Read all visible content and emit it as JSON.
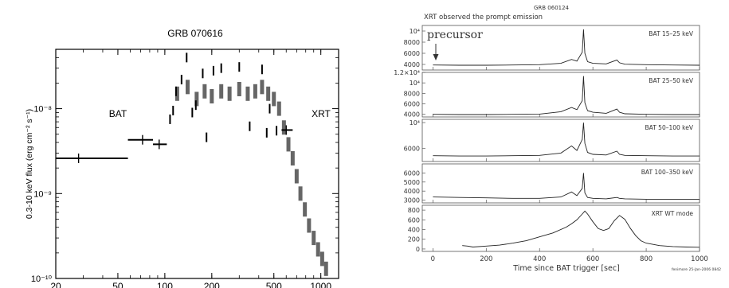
{
  "chart_data": [
    {
      "type": "scatter",
      "title": "GRB 070616",
      "xlabel": "",
      "ylabel": "0.3-10 keV flux (erg cm⁻² s⁻¹)",
      "x_scale": "log",
      "y_scale": "log",
      "xlim": [
        20,
        1300
      ],
      "ylim": [
        1e-10,
        5e-08
      ],
      "x_ticks": [
        20,
        50,
        100,
        200,
        500,
        1000
      ],
      "x_tick_labels": [
        "20",
        "50",
        "100",
        "200",
        "500",
        "1000"
      ],
      "y_ticks": [
        1e-10,
        1e-09,
        1e-08
      ],
      "y_tick_labels": [
        "10⁻¹⁰",
        "10⁻⁹",
        "10⁻⁸"
      ],
      "annotations": [
        "BAT",
        "XRT"
      ],
      "series": [
        {
          "name": "",
          "points": [
            {
              "x": 28,
              "y": 2.6e-09,
              "xerr": [
                20,
                58
              ]
            },
            {
              "x": 72,
              "y": 4.3e-09,
              "xerr": [
                58,
                84
              ]
            },
            {
              "x": 92,
              "y": 3.8e-09,
              "xerr": [
                84,
                103
              ]
            },
            {
              "x": 108,
              "y": 7.5e-09
            },
            {
              "x": 113,
              "y": 9.5e-09
            },
            {
              "x": 118,
              "y": 1.6e-08
            },
            {
              "x": 128,
              "y": 2.2e-08
            },
            {
              "x": 138,
              "y": 4e-08
            },
            {
              "x": 150,
              "y": 9e-09
            },
            {
              "x": 158,
              "y": 1.1e-08
            },
            {
              "x": 175,
              "y": 2.6e-08
            },
            {
              "x": 185,
              "y": 4.6e-09
            },
            {
              "x": 205,
              "y": 2.8e-08
            },
            {
              "x": 230,
              "y": 3e-08
            },
            {
              "x": 300,
              "y": 3.1e-08
            },
            {
              "x": 350,
              "y": 6.2e-09
            },
            {
              "x": 420,
              "y": 2.9e-08
            },
            {
              "x": 450,
              "y": 5.2e-09
            },
            {
              "x": 470,
              "y": 1e-08
            },
            {
              "x": 520,
              "y": 5.5e-09
            },
            {
              "x": 600,
              "y": 5.6e-09,
              "xerr": [
                560,
                660
              ]
            }
          ]
        },
        {
          "name": "",
          "points": [
            {
              "x": 120,
              "y": 1.5e-08
            },
            {
              "x": 140,
              "y": 1.8e-08
            },
            {
              "x": 160,
              "y": 1.3e-08
            },
            {
              "x": 180,
              "y": 1.6e-08
            },
            {
              "x": 200,
              "y": 1.4e-08
            },
            {
              "x": 230,
              "y": 1.6e-08
            },
            {
              "x": 260,
              "y": 1.5e-08
            },
            {
              "x": 300,
              "y": 1.7e-08
            },
            {
              "x": 340,
              "y": 1.5e-08
            },
            {
              "x": 380,
              "y": 1.6e-08
            },
            {
              "x": 420,
              "y": 1.8e-08
            },
            {
              "x": 460,
              "y": 1.5e-08
            },
            {
              "x": 500,
              "y": 1.3e-08
            },
            {
              "x": 540,
              "y": 1e-08
            },
            {
              "x": 580,
              "y": 6e-09
            },
            {
              "x": 620,
              "y": 3.8e-09
            },
            {
              "x": 660,
              "y": 2.6e-09
            },
            {
              "x": 700,
              "y": 1.6e-09
            },
            {
              "x": 740,
              "y": 1e-09
            },
            {
              "x": 790,
              "y": 6.5e-10
            },
            {
              "x": 840,
              "y": 4.2e-10
            },
            {
              "x": 900,
              "y": 3e-10
            },
            {
              "x": 960,
              "y": 2.2e-10
            },
            {
              "x": 1020,
              "y": 1.7e-10
            },
            {
              "x": 1080,
              "y": 1.3e-10
            }
          ]
        }
      ]
    },
    {
      "type": "line",
      "title": "GRB 060124",
      "subtitle": "XRT observed the prompt emission",
      "annotation": "precursor",
      "xlabel": "Time since BAT trigger [sec]",
      "xlim": [
        -40,
        1000
      ],
      "x_ticks": [
        0,
        200,
        400,
        600,
        800,
        1000
      ],
      "x_tick_labels": [
        "0",
        "200",
        "400",
        "600",
        "800",
        "1000"
      ],
      "footer": "fenimore 25-Jan-2006 0842",
      "panels": [
        {
          "label": "BAT 15–25 keV",
          "ylim": [
            3000,
            11000
          ],
          "y_ticks": [
            4000,
            6000,
            8000,
            10000
          ],
          "y_tick_labels": [
            "4000",
            "6000",
            "8000",
            "10⁴"
          ],
          "x": [
            0,
            100,
            200,
            300,
            400,
            480,
            520,
            540,
            560,
            565,
            570,
            580,
            600,
            650,
            690,
            700,
            720,
            800,
            900,
            1000
          ],
          "y": [
            3900,
            3850,
            3850,
            3900,
            3950,
            4200,
            4900,
            4600,
            6200,
            10300,
            6000,
            4500,
            4200,
            4100,
            4800,
            4300,
            4050,
            3950,
            3900,
            3850
          ]
        },
        {
          "label": "BAT 25–50 keV",
          "ylim": [
            3500,
            12000
          ],
          "y_ticks": [
            4000,
            6000,
            8000,
            10000,
            12000
          ],
          "y_tick_labels": [
            "4000",
            "6000",
            "8000",
            "10⁴",
            "1.2×10⁴"
          ],
          "x": [
            0,
            100,
            200,
            300,
            400,
            480,
            520,
            540,
            560,
            565,
            570,
            580,
            600,
            650,
            690,
            700,
            720,
            800,
            900,
            1000
          ],
          "y": [
            4000,
            3950,
            3950,
            4000,
            4050,
            4500,
            5300,
            4900,
            6600,
            11300,
            6200,
            4700,
            4400,
            4200,
            5000,
            4400,
            4100,
            4000,
            3950,
            3950
          ]
        },
        {
          "label": "BAT 50–100 keV",
          "ylim": [
            4000,
            10500
          ],
          "y_ticks": [
            6000,
            10000
          ],
          "y_tick_labels": [
            "6000",
            "10⁴"
          ],
          "x": [
            0,
            100,
            200,
            300,
            400,
            480,
            520,
            540,
            560,
            565,
            570,
            580,
            600,
            650,
            690,
            700,
            720,
            800,
            900,
            1000
          ],
          "y": [
            4900,
            4850,
            4850,
            4900,
            4950,
            5300,
            6400,
            5700,
            7400,
            10000,
            6800,
            5400,
            5100,
            5000,
            5600,
            5100,
            4950,
            4900,
            4850,
            4850
          ]
        },
        {
          "label": "BAT 100–350 keV",
          "ylim": [
            2700,
            7000
          ],
          "y_ticks": [
            3000,
            4000,
            5000,
            6000
          ],
          "y_tick_labels": [
            "3000",
            "4000",
            "5000",
            "6000"
          ],
          "x": [
            0,
            100,
            200,
            300,
            400,
            480,
            520,
            540,
            560,
            565,
            570,
            580,
            600,
            650,
            690,
            700,
            720,
            800,
            900,
            1000
          ],
          "y": [
            3350,
            3300,
            3250,
            3200,
            3200,
            3350,
            3900,
            3500,
            4300,
            6000,
            3800,
            3300,
            3200,
            3150,
            3300,
            3200,
            3150,
            3100,
            3100,
            3100
          ]
        },
        {
          "label": "XRT WT mode",
          "ylim": [
            -50,
            900
          ],
          "y_ticks": [
            0,
            200,
            400,
            600,
            800
          ],
          "y_tick_labels": [
            "0",
            "200",
            "400",
            "600",
            "800"
          ],
          "x": [
            110,
            130,
            150,
            200,
            250,
            300,
            350,
            400,
            450,
            500,
            520,
            540,
            560,
            570,
            580,
            600,
            620,
            640,
            660,
            680,
            700,
            720,
            740,
            760,
            780,
            800,
            850,
            900,
            950,
            1000
          ],
          "y": [
            70,
            60,
            40,
            60,
            80,
            120,
            170,
            250,
            330,
            450,
            520,
            600,
            720,
            780,
            720,
            560,
            420,
            380,
            420,
            580,
            690,
            610,
            430,
            280,
            170,
            120,
            70,
            50,
            40,
            35
          ]
        }
      ]
    }
  ]
}
